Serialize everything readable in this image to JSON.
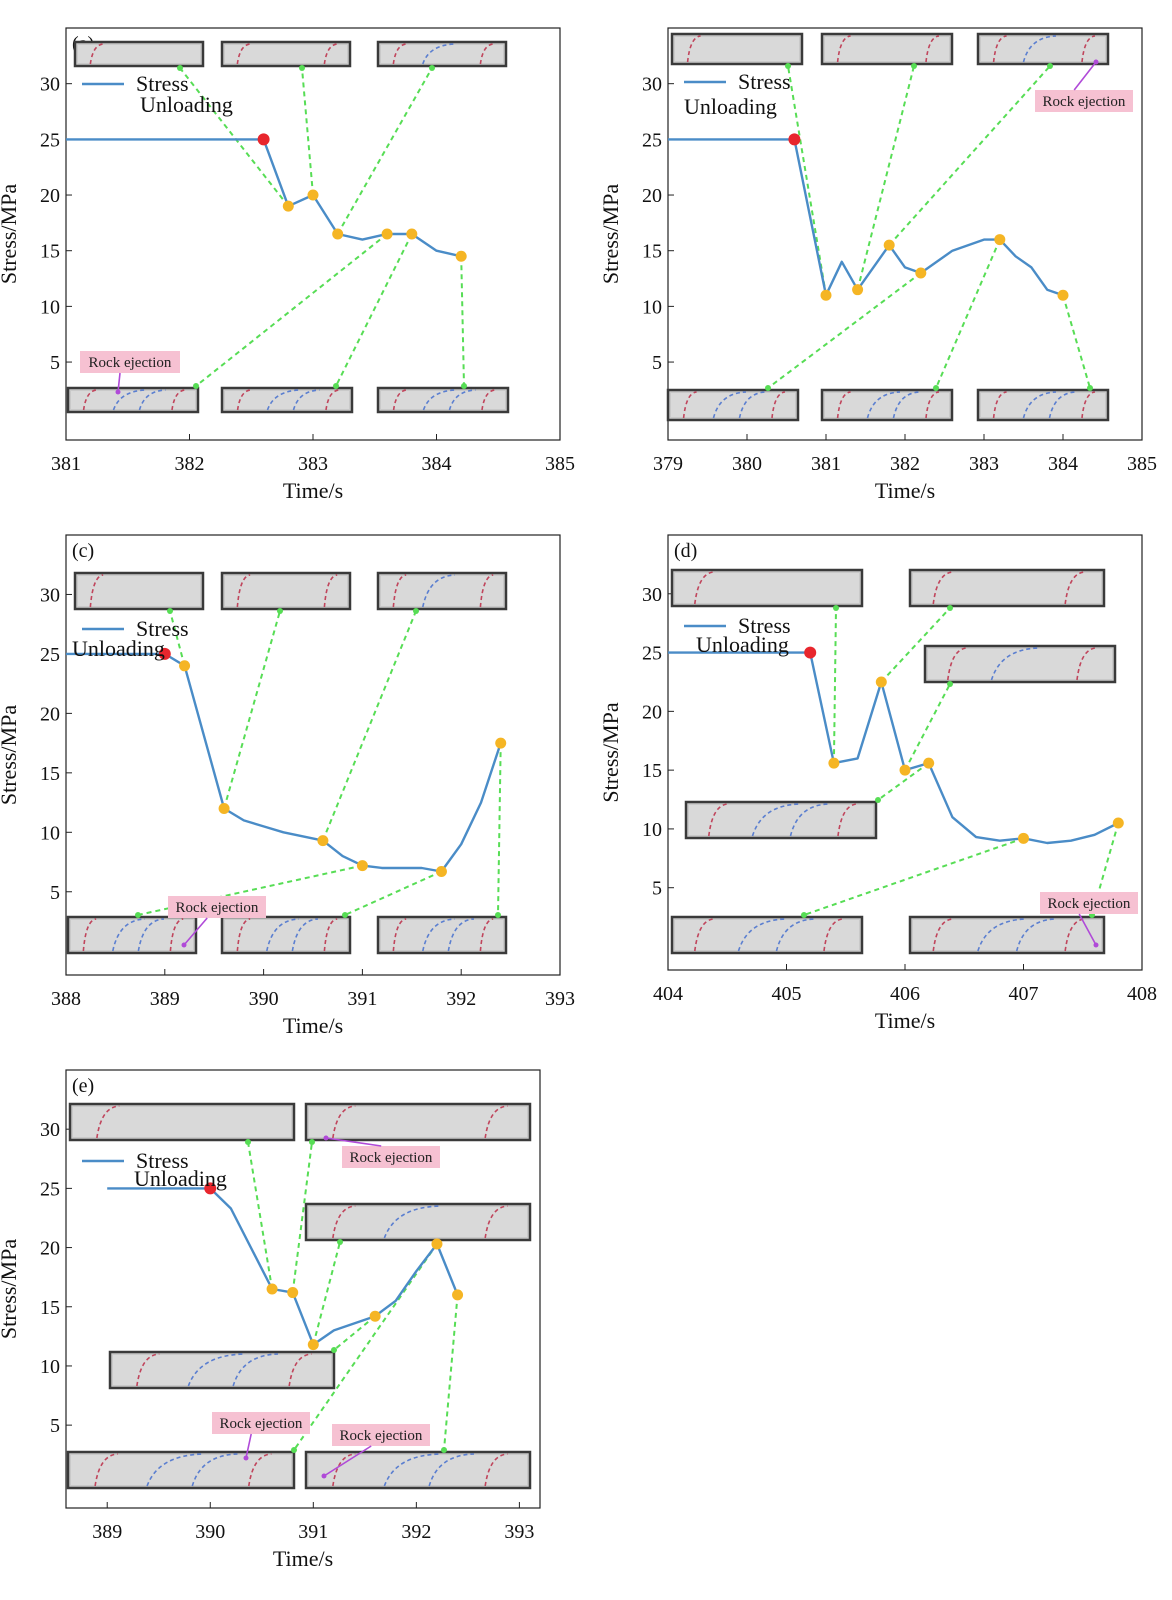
{
  "colors": {
    "stress_line": "#4a8cc7",
    "unloading_marker": "#e8262d",
    "state_marker": "#f5b524",
    "arrow": "#57dd55",
    "crack_red": "#c0455c",
    "crack_blue": "#5b7fd0",
    "annotation_bg": "#f6c1d2",
    "annotation_arrow": "#b04ad8"
  },
  "chart_data": [
    {
      "panel": "(a)",
      "type": "line",
      "xlabel": "Time/s",
      "ylabel": "Stress/MPa",
      "xlim": [
        381,
        385
      ],
      "ylim": [
        -2,
        35
      ],
      "xticks": [
        "381",
        "382",
        "383",
        "384",
        "385"
      ],
      "yticks": [
        "5",
        "10",
        "15",
        "20",
        "25",
        "30"
      ],
      "legend": "Stress",
      "unloading_label": "Unloading",
      "series": [
        {
          "name": "Stress",
          "x": [
            381,
            381.5,
            382,
            382.6,
            382.8,
            383.0,
            383.2,
            383.4,
            383.6,
            383.8,
            384.0,
            384.2
          ],
          "y": [
            25,
            25,
            25,
            25,
            19,
            20,
            16.5,
            16,
            16.5,
            16.5,
            15,
            14.5
          ]
        }
      ],
      "unloading_point": {
        "x": 382.6,
        "y": 25
      },
      "state_points": [
        {
          "x": 382.8,
          "y": 19
        },
        {
          "x": 383.0,
          "y": 20
        },
        {
          "x": 383.2,
          "y": 16.5
        },
        {
          "x": 383.6,
          "y": 16.5
        },
        {
          "x": 383.8,
          "y": 16.5
        },
        {
          "x": 384.2,
          "y": 14.5
        }
      ],
      "annotations": [
        "Rock ejection"
      ]
    },
    {
      "panel": "(b)",
      "type": "line",
      "xlabel": "Time/s",
      "ylabel": "Stress/MPa",
      "xlim": [
        379,
        385
      ],
      "ylim": [
        -2,
        35
      ],
      "xticks": [
        "379",
        "380",
        "381",
        "382",
        "383",
        "384",
        "385"
      ],
      "yticks": [
        "5",
        "10",
        "15",
        "20",
        "25",
        "30"
      ],
      "legend": "Stress",
      "unloading_label": "Unloading",
      "series": [
        {
          "name": "Stress",
          "x": [
            379,
            380,
            380.6,
            381.0,
            381.2,
            381.4,
            381.8,
            382.0,
            382.2,
            382.6,
            383.0,
            383.2,
            383.4,
            383.6,
            383.8,
            384.0
          ],
          "y": [
            25,
            25,
            25,
            11,
            14,
            11.5,
            15.5,
            13.5,
            13,
            15,
            16,
            16,
            14.5,
            13.5,
            11.5,
            11
          ]
        }
      ],
      "unloading_point": {
        "x": 380.6,
        "y": 25
      },
      "state_points": [
        {
          "x": 381.0,
          "y": 11
        },
        {
          "x": 381.4,
          "y": 11.5
        },
        {
          "x": 381.8,
          "y": 15.5
        },
        {
          "x": 382.2,
          "y": 13
        },
        {
          "x": 383.2,
          "y": 16
        },
        {
          "x": 384.0,
          "y": 11
        }
      ],
      "annotations": [
        "Rock ejection"
      ]
    },
    {
      "panel": "(c)",
      "type": "line",
      "xlabel": "Time/s",
      "ylabel": "Stress/MPa",
      "xlim": [
        388,
        393
      ],
      "ylim": [
        -2,
        35
      ],
      "xticks": [
        "388",
        "389",
        "390",
        "391",
        "392",
        "393"
      ],
      "yticks": [
        "5",
        "10",
        "15",
        "20",
        "25",
        "30"
      ],
      "legend": "Stress",
      "unloading_label": "Unloading",
      "series": [
        {
          "name": "Stress",
          "x": [
            388,
            388.5,
            389.0,
            389.2,
            389.6,
            389.8,
            390.0,
            390.2,
            390.6,
            390.8,
            391.0,
            391.2,
            391.6,
            391.8,
            392.0,
            392.2,
            392.4
          ],
          "y": [
            25,
            25,
            25,
            24,
            12,
            11,
            10.5,
            10,
            9.3,
            8,
            7.2,
            7,
            7,
            6.7,
            9,
            12.5,
            17.5
          ]
        }
      ],
      "unloading_point": {
        "x": 389.0,
        "y": 25
      },
      "state_points": [
        {
          "x": 389.2,
          "y": 24
        },
        {
          "x": 389.6,
          "y": 12
        },
        {
          "x": 390.6,
          "y": 9.3
        },
        {
          "x": 391.0,
          "y": 7.2
        },
        {
          "x": 391.8,
          "y": 6.7
        },
        {
          "x": 392.4,
          "y": 17.5
        }
      ],
      "annotations": [
        "Rock ejection"
      ]
    },
    {
      "panel": "(d)",
      "type": "line",
      "xlabel": "Time/s",
      "ylabel": "Stress/MPa",
      "xlim": [
        404,
        408
      ],
      "ylim": [
        -2,
        35
      ],
      "xticks": [
        "404",
        "405",
        "406",
        "407",
        "408"
      ],
      "yticks": [
        "5",
        "10",
        "15",
        "20",
        "25",
        "30"
      ],
      "legend": "Stress",
      "unloading_label": "Unloading",
      "series": [
        {
          "name": "Stress",
          "x": [
            404,
            404.6,
            405.2,
            405.4,
            405.6,
            405.8,
            406.0,
            406.2,
            406.4,
            406.6,
            406.8,
            407.0,
            407.2,
            407.4,
            407.6,
            407.8
          ],
          "y": [
            25,
            25,
            25,
            15.6,
            16,
            22.5,
            15,
            15.6,
            11,
            9.3,
            9,
            9.2,
            8.8,
            9,
            9.5,
            10.5
          ]
        }
      ],
      "unloading_point": {
        "x": 405.2,
        "y": 25
      },
      "state_points": [
        {
          "x": 405.4,
          "y": 15.6
        },
        {
          "x": 405.8,
          "y": 22.5
        },
        {
          "x": 406.0,
          "y": 15
        },
        {
          "x": 406.2,
          "y": 15.6
        },
        {
          "x": 407.0,
          "y": 9.2
        },
        {
          "x": 407.8,
          "y": 10.5
        }
      ],
      "annotations": [
        "Rock ejection"
      ]
    },
    {
      "panel": "(e)",
      "type": "line",
      "xlabel": "Time/s",
      "ylabel": "Stress/MPa",
      "xlim": [
        388.6,
        393.2
      ],
      "ylim": [
        -2,
        35
      ],
      "xticks": [
        "389",
        "390",
        "391",
        "392",
        "393"
      ],
      "yticks": [
        "5",
        "10",
        "15",
        "20",
        "25",
        "30"
      ],
      "legend": "Stress",
      "unloading_label": "Unloading",
      "series": [
        {
          "name": "Stress",
          "x": [
            389.0,
            389.5,
            390.0,
            390.2,
            390.6,
            390.8,
            391.0,
            391.2,
            391.6,
            391.8,
            392.0,
            392.2,
            392.4
          ],
          "y": [
            25,
            25,
            25,
            23.3,
            16.5,
            16.2,
            11.8,
            13,
            14.2,
            15.5,
            18,
            20.3,
            16
          ]
        }
      ],
      "unloading_point": {
        "x": 390.0,
        "y": 25
      },
      "state_points": [
        {
          "x": 390.6,
          "y": 16.5
        },
        {
          "x": 390.8,
          "y": 16.2
        },
        {
          "x": 391.0,
          "y": 11.8
        },
        {
          "x": 391.6,
          "y": 14.2
        },
        {
          "x": 392.2,
          "y": 20.3
        },
        {
          "x": 392.4,
          "y": 16
        }
      ],
      "annotations": [
        "Rock ejection",
        "Rock ejection",
        "Rock ejection"
      ]
    }
  ]
}
